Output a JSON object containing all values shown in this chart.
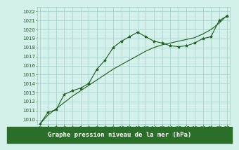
{
  "x": [
    0,
    1,
    2,
    3,
    4,
    5,
    6,
    7,
    8,
    9,
    10,
    11,
    12,
    13,
    14,
    15,
    16,
    17,
    18,
    19,
    20,
    21,
    22,
    23
  ],
  "y_data": [
    1009.5,
    1010.8,
    1011.1,
    1012.8,
    1013.2,
    1013.5,
    1014.0,
    1015.6,
    1016.6,
    1018.0,
    1018.7,
    1019.2,
    1019.7,
    1019.2,
    1018.7,
    1018.5,
    1018.2,
    1018.1,
    1018.2,
    1018.5,
    1019.0,
    1019.2,
    1021.0,
    1021.5
  ],
  "y_trend": [
    1009.5,
    1010.5,
    1011.2,
    1011.9,
    1012.6,
    1013.2,
    1013.8,
    1014.4,
    1015.0,
    1015.6,
    1016.1,
    1016.6,
    1017.1,
    1017.6,
    1018.0,
    1018.3,
    1018.5,
    1018.7,
    1018.9,
    1019.1,
    1019.5,
    1020.0,
    1020.7,
    1021.6
  ],
  "ylim": [
    1009.5,
    1022.5
  ],
  "xlim": [
    -0.3,
    23.3
  ],
  "yticks": [
    1010,
    1011,
    1012,
    1013,
    1014,
    1015,
    1016,
    1017,
    1018,
    1019,
    1020,
    1021,
    1022
  ],
  "xticks": [
    0,
    1,
    2,
    3,
    4,
    5,
    6,
    7,
    8,
    9,
    10,
    11,
    12,
    13,
    14,
    15,
    16,
    17,
    18,
    19,
    20,
    21,
    22,
    23
  ],
  "line_color": "#1a5c1a",
  "marker": "*",
  "bg_color": "#d4f0eb",
  "grid_color": "#9ecfc8",
  "xlabel": "Graphe pression niveau de la mer (hPa)",
  "xlabel_bg": "#2a6e2a",
  "xlabel_color": "#ffffff",
  "tick_fontsize": 5.0,
  "label_fontsize": 6.5
}
